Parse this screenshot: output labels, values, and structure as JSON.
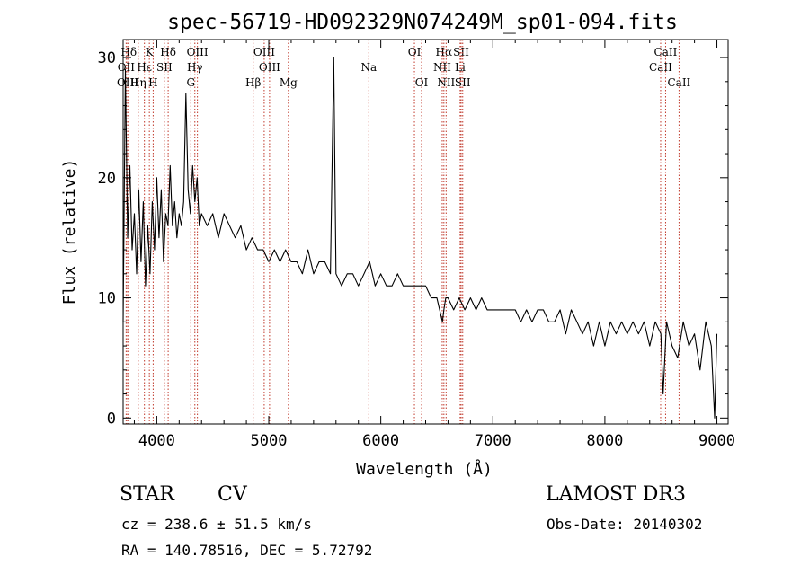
{
  "chart_data": {
    "type": "line",
    "title": "spec-56719-HD092329N074249M_sp01-094.fits",
    "xlabel": "Wavelength (Å)",
    "ylabel": "Flux (relative)",
    "xlim": [
      3700,
      9100
    ],
    "ylim": [
      -0.5,
      31.5
    ],
    "x_ticks": [
      4000,
      5000,
      6000,
      7000,
      8000,
      9000
    ],
    "y_ticks": [
      0,
      10,
      20,
      30
    ],
    "series": [
      {
        "name": "flux",
        "x": [
          3700,
          3720,
          3740,
          3760,
          3780,
          3800,
          3820,
          3840,
          3860,
          3880,
          3900,
          3920,
          3940,
          3960,
          3980,
          4000,
          4020,
          4040,
          4060,
          4080,
          4100,
          4120,
          4140,
          4160,
          4180,
          4200,
          4220,
          4240,
          4260,
          4280,
          4300,
          4320,
          4340,
          4360,
          4380,
          4400,
          4450,
          4500,
          4550,
          4600,
          4650,
          4700,
          4750,
          4800,
          4850,
          4900,
          4950,
          5000,
          5050,
          5100,
          5150,
          5200,
          5250,
          5300,
          5350,
          5400,
          5450,
          5500,
          5550,
          5580,
          5600,
          5650,
          5700,
          5750,
          5800,
          5850,
          5900,
          5950,
          6000,
          6050,
          6100,
          6150,
          6200,
          6250,
          6300,
          6350,
          6400,
          6450,
          6500,
          6550,
          6563,
          6580,
          6600,
          6650,
          6700,
          6750,
          6800,
          6850,
          6900,
          6950,
          7000,
          7050,
          7100,
          7150,
          7200,
          7250,
          7300,
          7350,
          7400,
          7450,
          7500,
          7550,
          7600,
          7650,
          7700,
          7750,
          7800,
          7850,
          7900,
          7950,
          8000,
          8050,
          8100,
          8150,
          8200,
          8250,
          8300,
          8350,
          8400,
          8450,
          8500,
          8520,
          8550,
          8600,
          8650,
          8700,
          8750,
          8800,
          8850,
          8900,
          8950,
          8980,
          9000
        ],
        "y": [
          8,
          29,
          15,
          21,
          14,
          17,
          12,
          19,
          13,
          18,
          11,
          16,
          12,
          18,
          14,
          20,
          15,
          19,
          13,
          17,
          16,
          21,
          16,
          18,
          15,
          17,
          16,
          18,
          27,
          19,
          17,
          21,
          18,
          20,
          16,
          17,
          16,
          17,
          15,
          17,
          16,
          15,
          16,
          14,
          15,
          14,
          14,
          13,
          14,
          13,
          14,
          13,
          13,
          12,
          14,
          12,
          13,
          13,
          12,
          30,
          12,
          11,
          12,
          12,
          11,
          12,
          13,
          11,
          12,
          11,
          11,
          12,
          11,
          11,
          11,
          11,
          11,
          10,
          10,
          8,
          9,
          10,
          10,
          9,
          10,
          9,
          10,
          9,
          10,
          9,
          9,
          9,
          9,
          9,
          9,
          8,
          9,
          8,
          9,
          9,
          8,
          8,
          9,
          7,
          9,
          8,
          7,
          8,
          6,
          8,
          6,
          8,
          7,
          8,
          7,
          8,
          7,
          8,
          6,
          8,
          7,
          2,
          8,
          6,
          5,
          8,
          6,
          7,
          4,
          8,
          6,
          0,
          7
        ]
      }
    ],
    "line_markers": [
      {
        "label": "Hδ",
        "x": 3750,
        "row": 1
      },
      {
        "label": "OII",
        "x": 3727,
        "row": 2
      },
      {
        "label": "OIII",
        "x": 3740,
        "row": 3
      },
      {
        "label": "Hε",
        "x": 3890,
        "row": 2
      },
      {
        "label": "Hη",
        "x": 3835,
        "row": 3
      },
      {
        "label": "K",
        "x": 3934,
        "row": 1
      },
      {
        "label": "H",
        "x": 3968,
        "row": 3
      },
      {
        "label": "SII",
        "x": 4068,
        "row": 2
      },
      {
        "label": "Hδ",
        "x": 4102,
        "row": 1
      },
      {
        "label": "OIII",
        "x": 4363,
        "row": 1
      },
      {
        "label": "Hγ",
        "x": 4340,
        "row": 2
      },
      {
        "label": "G",
        "x": 4304,
        "row": 3
      },
      {
        "label": "Hβ",
        "x": 4861,
        "row": 3
      },
      {
        "label": "OIII",
        "x": 4959,
        "row": 1
      },
      {
        "label": "OIII",
        "x": 5007,
        "row": 2
      },
      {
        "label": "Mg",
        "x": 5175,
        "row": 3
      },
      {
        "label": "Na",
        "x": 5893,
        "row": 2
      },
      {
        "label": "OI",
        "x": 6300,
        "row": 1
      },
      {
        "label": "OI",
        "x": 6364,
        "row": 3
      },
      {
        "label": "Hα",
        "x": 6563,
        "row": 1
      },
      {
        "label": "NII",
        "x": 6548,
        "row": 2
      },
      {
        "label": "NII",
        "x": 6583,
        "row": 3
      },
      {
        "label": "SII",
        "x": 6717,
        "row": 1
      },
      {
        "label": "Li",
        "x": 6708,
        "row": 2
      },
      {
        "label": "SII",
        "x": 6731,
        "row": 3
      },
      {
        "label": "CaII",
        "x": 8498,
        "row": 2
      },
      {
        "label": "CaII",
        "x": 8542,
        "row": 1
      },
      {
        "label": "CaII",
        "x": 8662,
        "row": 3
      }
    ]
  },
  "footer": {
    "class_label": "STAR",
    "subclass_label": "CV",
    "survey": "LAMOST DR3",
    "cz": "cz = 238.6 ± 51.5 km/s",
    "obs_date": "Obs-Date: 20140302",
    "radec": "RA = 140.78516, DEC =   5.72792"
  }
}
